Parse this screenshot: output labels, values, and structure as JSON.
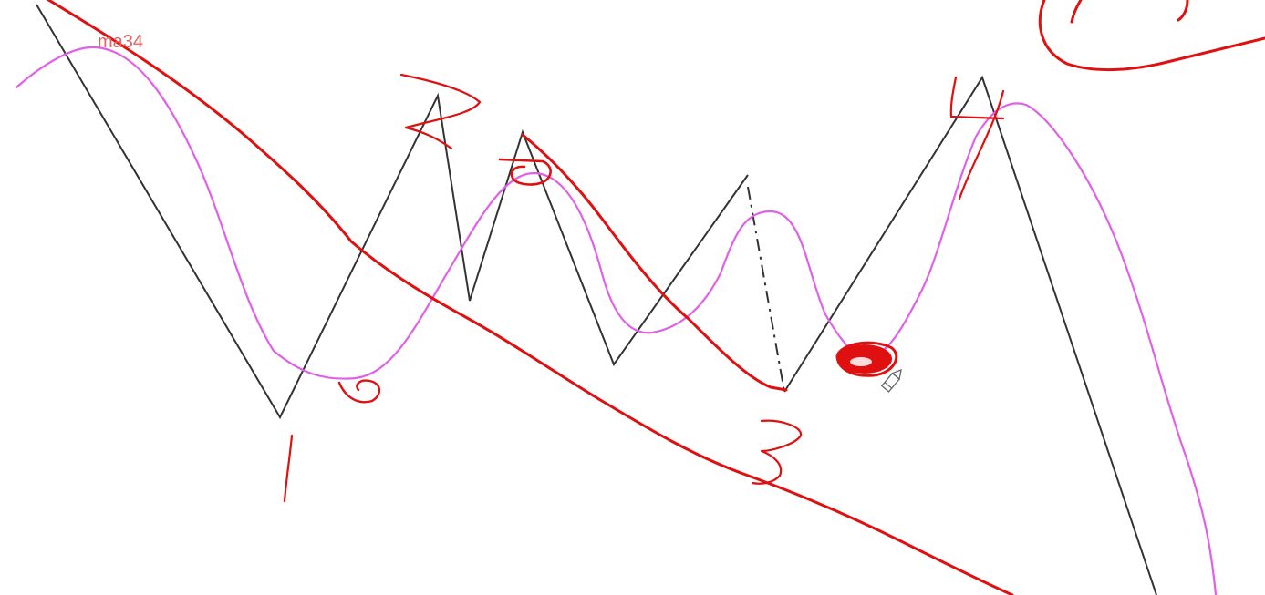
{
  "annotations": {
    "ma_label": "ma34"
  },
  "colors": {
    "background": "#ffffff",
    "zigzag_line": "#333333",
    "ma_curve": "#e060e8",
    "annotation_red": "#e01010",
    "cursor_icon": "#888888"
  },
  "icons": {
    "cursor": "pencil-cursor-icon"
  }
}
